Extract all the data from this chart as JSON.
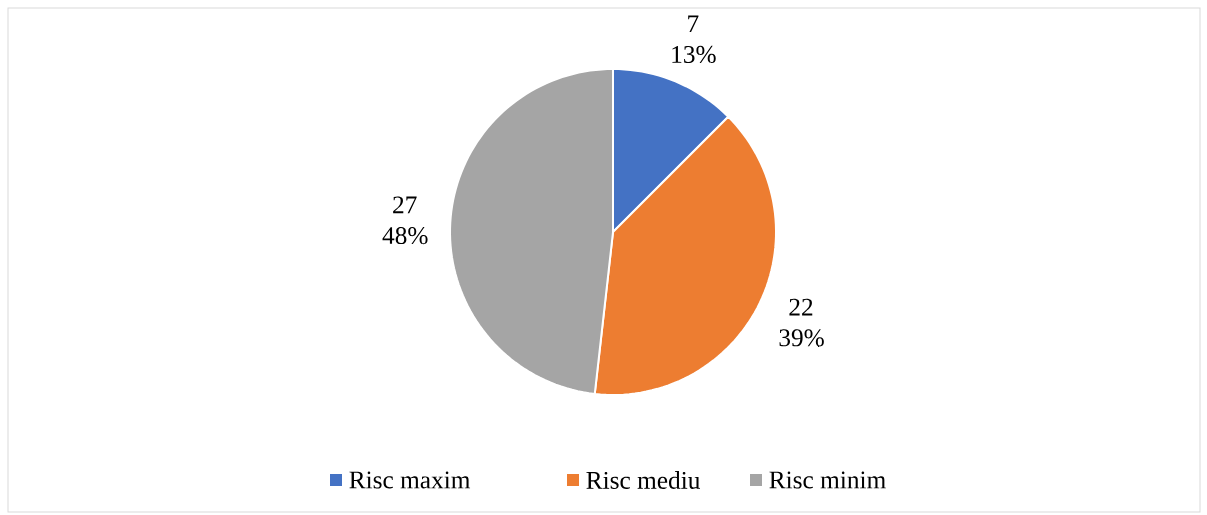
{
  "chart_data": {
    "type": "pie",
    "categories": [
      "Risc maxim",
      "Risc mediu",
      "Risc minim"
    ],
    "values": [
      7,
      22,
      27
    ],
    "colors": [
      "#4472c4",
      "#ed7d31",
      "#a5a5a5"
    ],
    "value_labels": [
      "7 13%",
      "22 39%",
      "27 48%"
    ],
    "legend": "bottom"
  }
}
